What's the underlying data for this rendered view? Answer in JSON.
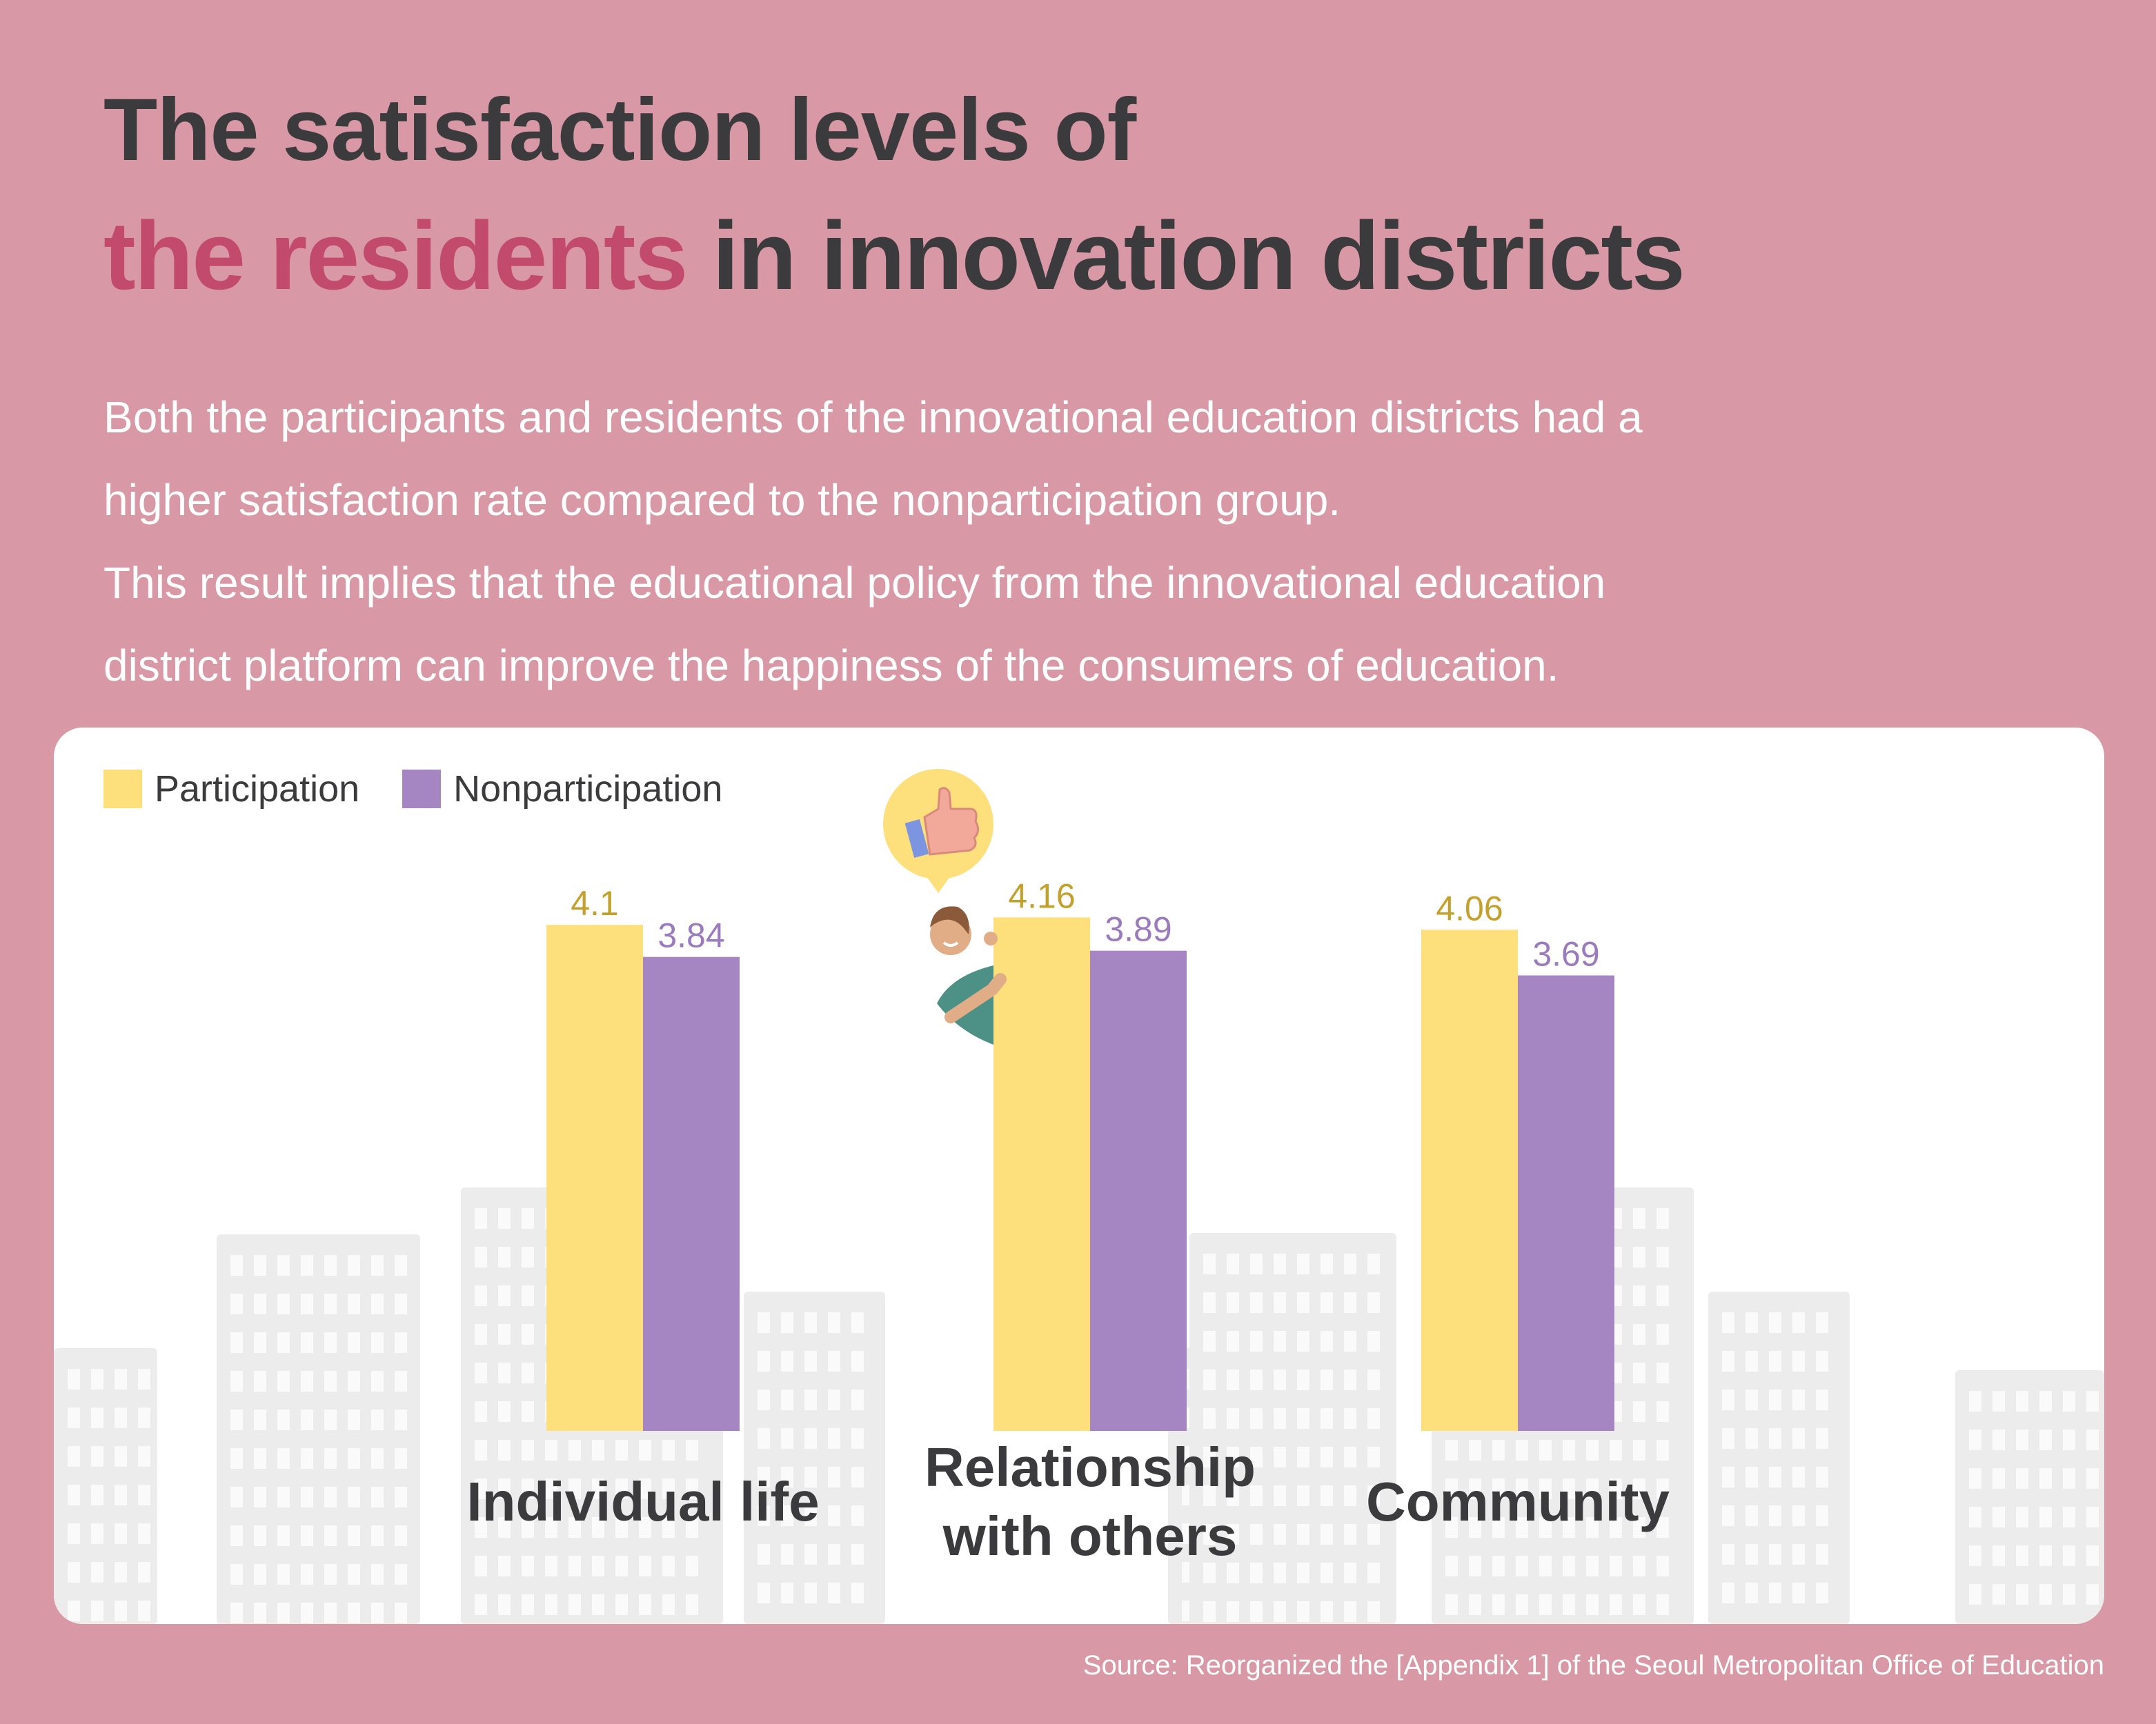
{
  "title": {
    "line1": "The satisfaction levels of",
    "line2_highlight": "the residents",
    "line2_rest": " in innovation districts"
  },
  "description": [
    "Both the participants and residents of the innovational education districts had a",
    "higher satisfaction rate compared to the nonparticipation group.",
    "This result implies that the educational policy from the innovational education",
    "district platform can improve the happiness of the consumers of education."
  ],
  "source": "Source: Reorganized the [Appendix 1] of the Seoul Metropolitan Office of Education",
  "colors": {
    "background": "#d898a6",
    "participation": "#fde07c",
    "nonparticipation": "#a685c3",
    "participation_label": "#c4a12c",
    "nonparticipation_label": "#9a7bbd",
    "highlight": "#c24a6d"
  },
  "chart_data": {
    "type": "bar",
    "title": "The satisfaction levels of the residents in innovation districts",
    "categories": [
      [
        "Individual life"
      ],
      [
        "Relationship",
        "with others"
      ],
      [
        "Community"
      ]
    ],
    "series": [
      {
        "name": "Participation",
        "values": [
          4.1,
          4.16,
          4.06
        ]
      },
      {
        "name": "Nonparticipation",
        "values": [
          3.84,
          3.89,
          3.69
        ]
      }
    ],
    "value_labels": [
      [
        "4.1",
        "4.16",
        "4.06"
      ],
      [
        "3.84",
        "3.89",
        "3.69"
      ]
    ],
    "ylim": [
      0,
      5
    ],
    "grid": false,
    "legend": "top-left",
    "icons": [
      "thumbs-up-icon",
      "person-illustration"
    ]
  }
}
